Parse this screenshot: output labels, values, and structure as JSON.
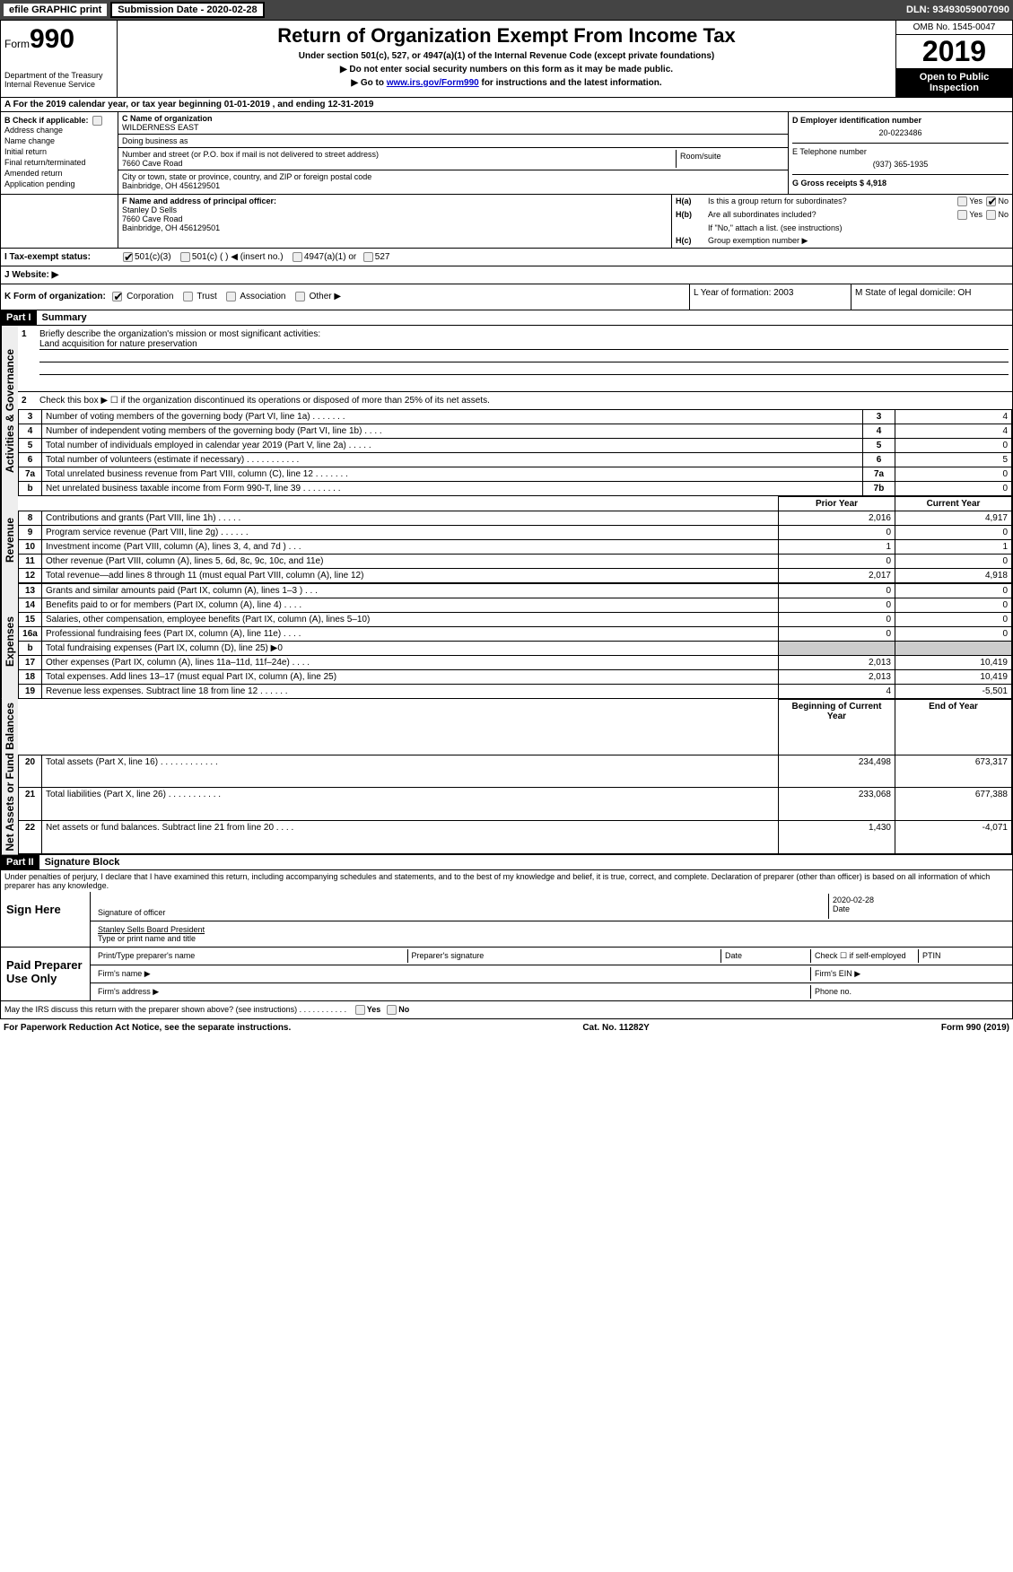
{
  "topbar": {
    "efile": "efile GRAPHIC print",
    "submission_label": "Submission Date - 2020-02-28",
    "dln": "DLN: 93493059007090"
  },
  "header": {
    "form_prefix": "Form",
    "form_num": "990",
    "dept": "Department of the Treasury\nInternal Revenue Service",
    "title": "Return of Organization Exempt From Income Tax",
    "subtitle": "Under section 501(c), 527, or 4947(a)(1) of the Internal Revenue Code (except private foundations)",
    "instr1": "▶ Do not enter social security numbers on this form as it may be made public.",
    "instr2": "▶ Go to www.irs.gov/Form990 for instructions and the latest information.",
    "omb": "OMB No. 1545-0047",
    "year": "2019",
    "open": "Open to Public Inspection"
  },
  "sectionA": "A   For the 2019 calendar year, or tax year beginning 01-01-2019        , and ending 12-31-2019",
  "boxB": {
    "label": "B Check if applicable:",
    "items": [
      "Address change",
      "Name change",
      "Initial return",
      "Final return/terminated",
      "Amended return",
      "Application pending"
    ]
  },
  "boxC": {
    "name_label": "C Name of organization",
    "name": "WILDERNESS EAST",
    "dba_label": "Doing business as",
    "dba": "",
    "street_label": "Number and street (or P.O. box if mail is not delivered to street address)",
    "street": "7660 Cave Road",
    "room_label": "Room/suite",
    "room": "",
    "city_label": "City or town, state or province, country, and ZIP or foreign postal code",
    "city": "Bainbridge, OH  456129501"
  },
  "boxD": {
    "label": "D Employer identification number",
    "val": "20-0223486"
  },
  "boxE": {
    "label": "E Telephone number",
    "val": "(937) 365-1935"
  },
  "boxG": {
    "label": "G Gross receipts $ 4,918"
  },
  "boxF": {
    "label": "F Name and address of principal officer:",
    "name": "Stanley D Sells",
    "addr1": "7660 Cave Road",
    "addr2": "Bainbridge, OH  456129501"
  },
  "boxH": {
    "a": "Is this a group return for subordinates?",
    "b": "Are all subordinates included?",
    "b2": "If \"No,\" attach a list. (see instructions)",
    "c": "Group exemption number ▶"
  },
  "rowI": {
    "label": "I    Tax-exempt status:",
    "opts": [
      "501(c)(3)",
      "501(c) (  ) ◀ (insert no.)",
      "4947(a)(1) or",
      "527"
    ]
  },
  "rowJ": {
    "label": "J    Website: ▶"
  },
  "rowK": {
    "label": "K Form of organization:",
    "opts": [
      "Corporation",
      "Trust",
      "Association",
      "Other ▶"
    ]
  },
  "rowL": {
    "label": "L Year of formation: 2003"
  },
  "rowM": {
    "label": "M State of legal domicile: OH"
  },
  "part1": {
    "header": "Part I",
    "title": "Summary",
    "line1_label": "Briefly describe the organization's mission or most significant activities:",
    "line1_text": "Land acquisition for nature preservation",
    "line2": "Check this box ▶ ☐ if the organization discontinued its operations or disposed of more than 25% of its net assets.",
    "rows_ag": [
      {
        "n": "3",
        "d": "Number of voting members of the governing body (Part VI, line 1a)  .     .     .     .     .     .     .",
        "b": "3",
        "v": "4"
      },
      {
        "n": "4",
        "d": "Number of independent voting members of the governing body (Part VI, line 1b)   .     .     .     .",
        "b": "4",
        "v": "4"
      },
      {
        "n": "5",
        "d": "Total number of individuals employed in calendar year 2019 (Part V, line 2a)    .     .     .     .     .",
        "b": "5",
        "v": "0"
      },
      {
        "n": "6",
        "d": "Total number of volunteers (estimate if necessary)    .     .     .     .     .     .     .     .     .     .     .",
        "b": "6",
        "v": "5"
      },
      {
        "n": "7a",
        "d": "Total unrelated business revenue from Part VIII, column (C), line 12   .     .     .     .     .     .     .",
        "b": "7a",
        "v": "0"
      },
      {
        "n": "b",
        "d": "Net unrelated business taxable income from Form 990-T, line 39   .     .     .     .     .     .     .     .",
        "b": "7b",
        "v": "0"
      }
    ],
    "col_heads": {
      "prior": "Prior Year",
      "current": "Current Year"
    },
    "rev_rows": [
      {
        "n": "8",
        "d": "Contributions and grants (Part VIII, line 1h)   .     .     .     .     .",
        "p": "2,016",
        "c": "4,917"
      },
      {
        "n": "9",
        "d": "Program service revenue (Part VIII, line 2g)    .     .     .     .     .     .",
        "p": "0",
        "c": "0"
      },
      {
        "n": "10",
        "d": "Investment income (Part VIII, column (A), lines 3, 4, and 7d )   .     .     .",
        "p": "1",
        "c": "1"
      },
      {
        "n": "11",
        "d": "Other revenue (Part VIII, column (A), lines 5, 6d, 8c, 9c, 10c, and 11e)",
        "p": "0",
        "c": "0"
      },
      {
        "n": "12",
        "d": "Total revenue—add lines 8 through 11 (must equal Part VIII, column (A), line 12)",
        "p": "2,017",
        "c": "4,918"
      }
    ],
    "exp_rows": [
      {
        "n": "13",
        "d": "Grants and similar amounts paid (Part IX, column (A), lines 1–3 )   .     .     .",
        "p": "0",
        "c": "0"
      },
      {
        "n": "14",
        "d": "Benefits paid to or for members (Part IX, column (A), line 4)   .     .     .     .",
        "p": "0",
        "c": "0"
      },
      {
        "n": "15",
        "d": "Salaries, other compensation, employee benefits (Part IX, column (A), lines 5–10)",
        "p": "0",
        "c": "0"
      },
      {
        "n": "16a",
        "d": "Professional fundraising fees (Part IX, column (A), line 11e)   .     .     .     .",
        "p": "0",
        "c": "0"
      },
      {
        "n": "b",
        "d": "Total fundraising expenses (Part IX, column (D), line 25) ▶0",
        "p": "__SHADE__",
        "c": "__SHADE__"
      },
      {
        "n": "17",
        "d": "Other expenses (Part IX, column (A), lines 11a–11d, 11f–24e)   .     .     .     .",
        "p": "2,013",
        "c": "10,419"
      },
      {
        "n": "18",
        "d": "Total expenses. Add lines 13–17 (must equal Part IX, column (A), line 25)",
        "p": "2,013",
        "c": "10,419"
      },
      {
        "n": "19",
        "d": "Revenue less expenses. Subtract line 18 from line 12   .     .     .     .     .     .",
        "p": "4",
        "c": "-5,501"
      }
    ],
    "na_heads": {
      "beg": "Beginning of Current Year",
      "end": "End of Year"
    },
    "na_rows": [
      {
        "n": "20",
        "d": "Total assets (Part X, line 16)   .     .     .     .     .     .     .     .     .     .     .     .",
        "p": "234,498",
        "c": "673,317"
      },
      {
        "n": "21",
        "d": "Total liabilities (Part X, line 26)    .     .     .     .     .     .     .     .     .     .     .",
        "p": "233,068",
        "c": "677,388"
      },
      {
        "n": "22",
        "d": "Net assets or fund balances. Subtract line 21 from line 20   .     .     .     .",
        "p": "1,430",
        "c": "-4,071"
      }
    ],
    "vert_labels": {
      "ag": "Activities & Governance",
      "rev": "Revenue",
      "exp": "Expenses",
      "na": "Net Assets or Fund Balances"
    }
  },
  "part2": {
    "header": "Part II",
    "title": "Signature Block",
    "perjury": "Under penalties of perjury, I declare that I have examined this return, including accompanying schedules and statements, and to the best of my knowledge and belief, it is true, correct, and complete. Declaration of preparer (other than officer) is based on all information of which preparer has any knowledge.",
    "sign_here": "Sign Here",
    "sig_officer": "Signature of officer",
    "date_val": "2020-02-28",
    "date_label": "Date",
    "name_title": "Stanley Sells Board President",
    "name_title_label": "Type or print name and title",
    "paid": "Paid Preparer Use Only",
    "prep_name": "Print/Type preparer's name",
    "prep_sig": "Preparer's signature",
    "prep_date": "Date",
    "check_self": "Check ☐ if self-employed",
    "ptin": "PTIN",
    "firm_name": "Firm's name   ▶",
    "firm_ein": "Firm's EIN ▶",
    "firm_addr": "Firm's address ▶",
    "phone": "Phone no.",
    "discuss": "May the IRS discuss this return with the preparer shown above? (see instructions)   .     .     .     .     .     .     .     .     .     .     ."
  },
  "footer": {
    "left": "For Paperwork Reduction Act Notice, see the separate instructions.",
    "mid": "Cat. No. 11282Y",
    "right": "Form 990 (2019)"
  },
  "colors": {
    "topbar_bg": "#444444",
    "part_bg": "#000000",
    "shade": "#cccccc",
    "link": "#0000cc"
  }
}
